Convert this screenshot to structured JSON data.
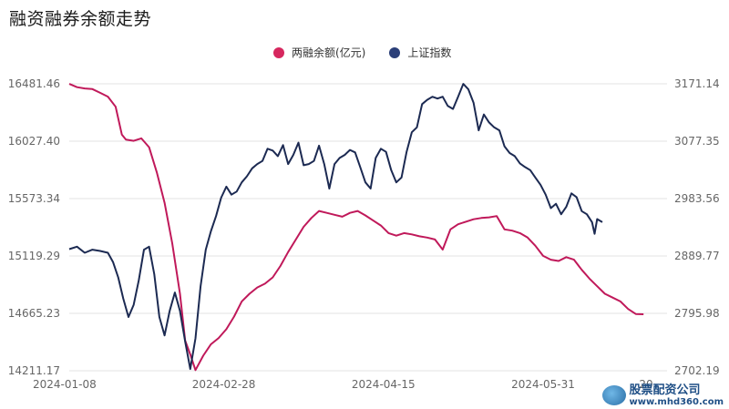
{
  "chart_data": {
    "type": "line",
    "title": "融资融券余额走势",
    "xlabel": "",
    "ylabel": "",
    "x_tick_labels": [
      "2024-01-08",
      "2024-02-28",
      "2024-04-15",
      "2024-05-31",
      "20"
    ],
    "left_axis": {
      "ticks": [
        "16481.46",
        "16027.40",
        "15573.34",
        "15119.29",
        "14665.23",
        "14211.17"
      ],
      "ylim": [
        14211.17,
        16481.46
      ]
    },
    "right_axis": {
      "ticks": [
        "3171.14",
        "3077.35",
        "2983.56",
        "2889.77",
        "2795.98",
        "2702.19"
      ],
      "ylim": [
        2702.19,
        3171.14
      ]
    },
    "grid": true,
    "legend_position": "top-center",
    "series": [
      {
        "name": "两融余额(亿元)",
        "axis": "left",
        "color": "#c0195a",
        "points": [
          [
            0,
            16481
          ],
          [
            1.5,
            16455
          ],
          [
            3,
            16445
          ],
          [
            4.5,
            16440
          ],
          [
            6,
            16410
          ],
          [
            7.5,
            16380
          ],
          [
            9,
            16300
          ],
          [
            10.2,
            16080
          ],
          [
            11,
            16040
          ],
          [
            12.5,
            16030
          ],
          [
            14,
            16050
          ],
          [
            15.5,
            15980
          ],
          [
            17,
            15780
          ],
          [
            18.5,
            15540
          ],
          [
            20,
            15220
          ],
          [
            21.5,
            14820
          ],
          [
            22.5,
            14450
          ],
          [
            23.5,
            14340
          ],
          [
            24.5,
            14216
          ],
          [
            26,
            14330
          ],
          [
            27.5,
            14420
          ],
          [
            29,
            14470
          ],
          [
            30.5,
            14540
          ],
          [
            32,
            14640
          ],
          [
            33.5,
            14760
          ],
          [
            35,
            14820
          ],
          [
            36.5,
            14870
          ],
          [
            38,
            14900
          ],
          [
            39.5,
            14950
          ],
          [
            41,
            15040
          ],
          [
            42.5,
            15150
          ],
          [
            44,
            15250
          ],
          [
            45.5,
            15350
          ],
          [
            47,
            15420
          ],
          [
            48.5,
            15475
          ],
          [
            50,
            15460
          ],
          [
            51.5,
            15445
          ],
          [
            53,
            15430
          ],
          [
            54.5,
            15460
          ],
          [
            56,
            15475
          ],
          [
            57.5,
            15440
          ],
          [
            59,
            15400
          ],
          [
            60.5,
            15360
          ],
          [
            62,
            15300
          ],
          [
            63.5,
            15280
          ],
          [
            65,
            15300
          ],
          [
            66.5,
            15290
          ],
          [
            68,
            15275
          ],
          [
            69.5,
            15265
          ],
          [
            71,
            15250
          ],
          [
            72.5,
            15170
          ],
          [
            74,
            15330
          ],
          [
            75.5,
            15370
          ],
          [
            77,
            15390
          ],
          [
            78.5,
            15410
          ],
          [
            80,
            15420
          ],
          [
            81.5,
            15425
          ],
          [
            83,
            15435
          ],
          [
            84.5,
            15330
          ],
          [
            86,
            15320
          ],
          [
            87.5,
            15300
          ],
          [
            89,
            15265
          ],
          [
            90.5,
            15200
          ],
          [
            92,
            15120
          ],
          [
            93.5,
            15090
          ],
          [
            95,
            15080
          ],
          [
            96.5,
            15110
          ],
          [
            98,
            15090
          ],
          [
            99.5,
            15010
          ],
          [
            101,
            14940
          ],
          [
            102.5,
            14880
          ],
          [
            104,
            14820
          ],
          [
            105.5,
            14790
          ],
          [
            107,
            14760
          ],
          [
            108.5,
            14700
          ],
          [
            110,
            14660
          ],
          [
            111.5,
            14658
          ]
        ]
      },
      {
        "name": "上证指数",
        "axis": "right",
        "color": "#1c2a52",
        "points": [
          [
            0,
            2901
          ],
          [
            1.5,
            2905
          ],
          [
            3,
            2895
          ],
          [
            4.5,
            2900
          ],
          [
            6,
            2898
          ],
          [
            7.5,
            2895
          ],
          [
            8.5,
            2880
          ],
          [
            9.5,
            2855
          ],
          [
            10.5,
            2820
          ],
          [
            11.5,
            2790
          ],
          [
            12.5,
            2810
          ],
          [
            13.5,
            2850
          ],
          [
            14.5,
            2900
          ],
          [
            15.5,
            2905
          ],
          [
            16.5,
            2860
          ],
          [
            17.5,
            2790
          ],
          [
            18.5,
            2760
          ],
          [
            19.5,
            2800
          ],
          [
            20.5,
            2830
          ],
          [
            21.5,
            2800
          ],
          [
            22.5,
            2750
          ],
          [
            23.5,
            2705
          ],
          [
            24.5,
            2755
          ],
          [
            25.5,
            2840
          ],
          [
            26.5,
            2900
          ],
          [
            27.5,
            2930
          ],
          [
            28.5,
            2955
          ],
          [
            29.5,
            2985
          ],
          [
            30.5,
            3003
          ],
          [
            31.5,
            2990
          ],
          [
            32.5,
            2995
          ],
          [
            33.5,
            3010
          ],
          [
            34.5,
            3020
          ],
          [
            35.5,
            3033
          ],
          [
            36.5,
            3040
          ],
          [
            37.5,
            3045
          ],
          [
            38.5,
            3065
          ],
          [
            39.5,
            3062
          ],
          [
            40.5,
            3053
          ],
          [
            41.5,
            3071
          ],
          [
            42.5,
            3040
          ],
          [
            43.5,
            3055
          ],
          [
            44.5,
            3075
          ],
          [
            45.5,
            3038
          ],
          [
            46.5,
            3040
          ],
          [
            47.5,
            3045
          ],
          [
            48.5,
            3070
          ],
          [
            49.5,
            3040
          ],
          [
            50.5,
            3000
          ],
          [
            51.5,
            3040
          ],
          [
            52.5,
            3050
          ],
          [
            53.5,
            3055
          ],
          [
            54.5,
            3063
          ],
          [
            55.5,
            3059
          ],
          [
            56.5,
            3035
          ],
          [
            57.5,
            3010
          ],
          [
            58.5,
            3000
          ],
          [
            59.5,
            3050
          ],
          [
            60.5,
            3065
          ],
          [
            61.5,
            3060
          ],
          [
            62.5,
            3030
          ],
          [
            63.5,
            3010
          ],
          [
            64.5,
            3018
          ],
          [
            65.5,
            3060
          ],
          [
            66.5,
            3092
          ],
          [
            67.5,
            3100
          ],
          [
            68.5,
            3138
          ],
          [
            69.5,
            3145
          ],
          [
            70.5,
            3150
          ],
          [
            71.5,
            3147
          ],
          [
            72.5,
            3150
          ],
          [
            73.5,
            3135
          ],
          [
            74.5,
            3130
          ],
          [
            75.5,
            3150
          ],
          [
            76.5,
            3171
          ],
          [
            77.5,
            3162
          ],
          [
            78.5,
            3140
          ],
          [
            79.5,
            3095
          ],
          [
            80.5,
            3121
          ],
          [
            81.5,
            3108
          ],
          [
            82.5,
            3100
          ],
          [
            83.5,
            3095
          ],
          [
            84.5,
            3069
          ],
          [
            85.5,
            3058
          ],
          [
            86.5,
            3053
          ],
          [
            87.5,
            3041
          ],
          [
            88.5,
            3035
          ],
          [
            89.5,
            3030
          ],
          [
            90.5,
            3018
          ],
          [
            91.5,
            3006
          ],
          [
            92.5,
            2990
          ],
          [
            93.5,
            2968
          ],
          [
            94.5,
            2975
          ],
          [
            95.5,
            2958
          ],
          [
            96.5,
            2970
          ],
          [
            97.5,
            2992
          ],
          [
            98.5,
            2986
          ],
          [
            99.5,
            2963
          ],
          [
            100.5,
            2958
          ],
          [
            101.5,
            2945
          ],
          [
            102,
            2926
          ],
          [
            102.5,
            2950
          ],
          [
            103.5,
            2945
          ]
        ]
      }
    ]
  },
  "watermark": {
    "brand": "股票配资公司",
    "url": "www.mhd360.com"
  }
}
